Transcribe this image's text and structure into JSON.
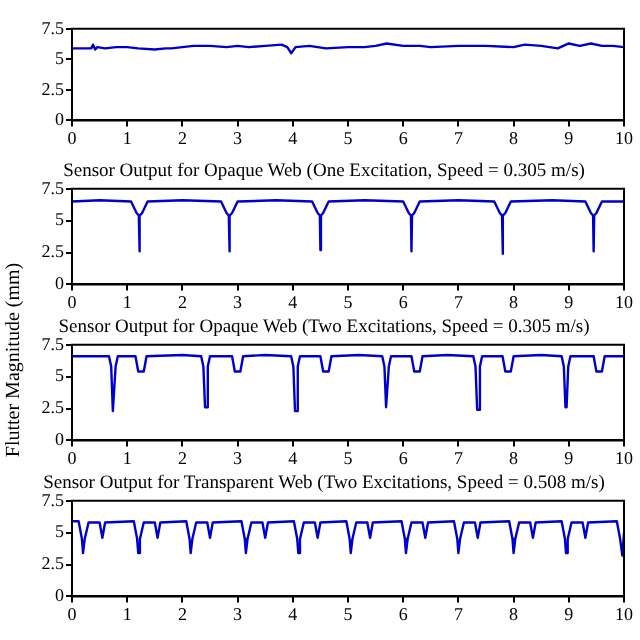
{
  "chart_data": [
    {
      "type": "line",
      "xlim": [
        0,
        10
      ],
      "xticks": [
        0,
        1,
        2,
        3,
        4,
        5,
        6,
        7,
        8,
        9,
        10
      ],
      "ylim": [
        0,
        7.5
      ],
      "yticks": [
        0,
        2.5,
        5,
        7.5
      ],
      "grid": false,
      "legend": false,
      "series": [
        {
          "color": "#0000cc",
          "x": [
            0,
            0.2,
            0.35,
            0.38,
            0.42,
            0.46,
            0.6,
            0.8,
            1,
            1.2,
            1.5,
            1.7,
            1.8,
            2,
            2.2,
            2.5,
            2.8,
            3,
            3.2,
            3.5,
            3.8,
            3.9,
            3.97,
            4.05,
            4.3,
            4.6,
            5,
            5.3,
            5.5,
            5.7,
            6,
            6.3,
            6.5,
            7,
            7.5,
            8,
            8.2,
            8.5,
            8.8,
            9,
            9.2,
            9.4,
            9.6,
            9.8,
            10
          ],
          "values": [
            5.9,
            5.9,
            5.9,
            6.2,
            5.8,
            6.0,
            5.9,
            6.0,
            6.0,
            5.9,
            5.8,
            5.9,
            5.9,
            6.0,
            6.1,
            6.1,
            6.0,
            6.1,
            6.0,
            6.1,
            6.2,
            6.0,
            5.5,
            6.0,
            6.1,
            5.9,
            6.0,
            6.0,
            6.1,
            6.3,
            6.1,
            6.1,
            6.0,
            6.1,
            6.1,
            6.0,
            6.2,
            6.1,
            5.9,
            6.3,
            6.1,
            6.3,
            6.1,
            6.1,
            6.0
          ]
        }
      ]
    },
    {
      "type": "line",
      "title": "Sensor Output for Opaque Web (One Excitation, Speed = 0.305 m/s)",
      "ylabel": "Flutter Magnitude (mm)",
      "xlim": [
        0,
        10
      ],
      "xticks": [
        0,
        1,
        2,
        3,
        4,
        5,
        6,
        7,
        8,
        9,
        10
      ],
      "ylim": [
        0,
        7.5
      ],
      "yticks": [
        0,
        2.5,
        5,
        7.5
      ],
      "grid": false,
      "legend": false,
      "series": [
        {
          "color": "#0000cc",
          "x": [
            0,
            0.5,
            1.07,
            1.17,
            1.21,
            1.22,
            1.23,
            1.27,
            1.37,
            2,
            2.7,
            2.8,
            2.84,
            2.85,
            2.86,
            2.9,
            3,
            3.7,
            4.35,
            4.45,
            4.49,
            4.5,
            4.51,
            4.55,
            4.65,
            5.3,
            6,
            6.1,
            6.14,
            6.15,
            6.16,
            6.2,
            6.3,
            7,
            7.65,
            7.75,
            7.79,
            7.8,
            7.81,
            7.85,
            7.95,
            8.7,
            9.3,
            9.4,
            9.44,
            9.45,
            9.46,
            9.5,
            9.6,
            10
          ],
          "values": [
            6.5,
            6.6,
            6.5,
            5.6,
            5.4,
            2.6,
            5.4,
            5.6,
            6.5,
            6.6,
            6.5,
            5.6,
            5.4,
            2.6,
            5.4,
            5.6,
            6.5,
            6.6,
            6.5,
            5.6,
            5.4,
            2.7,
            5.4,
            5.6,
            6.5,
            6.6,
            6.5,
            5.6,
            5.4,
            2.6,
            5.4,
            5.6,
            6.5,
            6.6,
            6.5,
            5.6,
            5.4,
            2.4,
            5.4,
            5.6,
            6.5,
            6.6,
            6.5,
            5.6,
            5.4,
            2.6,
            5.4,
            5.6,
            6.5,
            6.5
          ]
        }
      ]
    },
    {
      "type": "line",
      "title": "Sensor Output for Opaque Web (Two Excitations, Speed = 0.305 m/s)",
      "xlim": [
        0,
        10
      ],
      "xticks": [
        0,
        1,
        2,
        3,
        4,
        5,
        6,
        7,
        8,
        9,
        10
      ],
      "ylim": [
        0,
        7.5
      ],
      "yticks": [
        0,
        2.5,
        5,
        7.5
      ],
      "grid": false,
      "legend": false,
      "series": [
        {
          "color": "#0000cc",
          "x": [
            0,
            0.67,
            0.71,
            0.74,
            0.76,
            0.79,
            0.83,
            1.15,
            1.2,
            1.3,
            1.35,
            2,
            2.34,
            2.38,
            2.41,
            2.43,
            2.46,
            2.5,
            2.9,
            2.95,
            3.05,
            3.1,
            3.5,
            3.97,
            4.01,
            4.04,
            4.06,
            4.09,
            4.13,
            4.5,
            4.55,
            4.65,
            4.7,
            5.2,
            5.62,
            5.66,
            5.69,
            5.71,
            5.74,
            5.78,
            6.15,
            6.2,
            6.3,
            6.35,
            6.8,
            7.27,
            7.31,
            7.34,
            7.36,
            7.39,
            7.43,
            7.8,
            7.85,
            7.95,
            8,
            8.5,
            8.87,
            8.91,
            8.94,
            8.96,
            8.99,
            9.03,
            9.45,
            9.5,
            9.6,
            9.65,
            10
          ],
          "values": [
            6.6,
            6.6,
            5.8,
            2.3,
            2.3,
            5.8,
            6.6,
            6.6,
            5.4,
            5.4,
            6.6,
            6.7,
            6.6,
            5.8,
            2.6,
            2.6,
            5.8,
            6.6,
            6.6,
            5.4,
            5.4,
            6.6,
            6.7,
            6.6,
            5.8,
            2.3,
            2.3,
            5.8,
            6.6,
            6.6,
            5.4,
            5.4,
            6.6,
            6.7,
            6.6,
            5.8,
            2.6,
            2.6,
            5.8,
            6.6,
            6.6,
            5.4,
            5.4,
            6.6,
            6.7,
            6.6,
            5.8,
            2.4,
            2.4,
            5.8,
            6.6,
            6.6,
            5.4,
            5.4,
            6.6,
            6.7,
            6.6,
            5.8,
            2.6,
            2.6,
            5.8,
            6.6,
            6.6,
            5.4,
            5.4,
            6.6,
            6.6
          ]
        }
      ]
    },
    {
      "type": "line",
      "title": "Sensor Output for Transparent Web (Two Excitations, Speed = 0.508 m/s)",
      "xlim": [
        0,
        10
      ],
      "xticks": [
        0,
        1,
        2,
        3,
        4,
        5,
        6,
        7,
        8,
        9,
        10
      ],
      "ylim": [
        0,
        7.5
      ],
      "yticks": [
        0,
        2.5,
        5,
        7.5
      ],
      "grid": false,
      "legend": false,
      "series": [
        {
          "color": "#0000cc",
          "x": [
            0,
            0.12,
            0.18,
            0.2,
            0.23,
            0.3,
            0.5,
            0.55,
            0.6,
            1.12,
            1.18,
            1.2,
            1.23,
            1.3,
            1.5,
            1.55,
            1.6,
            2.07,
            2.13,
            2.15,
            2.18,
            2.25,
            2.45,
            2.5,
            2.55,
            3.07,
            3.13,
            3.15,
            3.18,
            3.25,
            3.45,
            3.5,
            3.55,
            4.02,
            4.08,
            4.1,
            4.13,
            4.2,
            4.4,
            4.45,
            4.5,
            4.97,
            5.03,
            5.05,
            5.08,
            5.15,
            5.35,
            5.4,
            5.45,
            5.97,
            6.03,
            6.05,
            6.08,
            6.15,
            6.35,
            6.4,
            6.45,
            6.92,
            6.98,
            7,
            7.03,
            7.1,
            7.3,
            7.35,
            7.4,
            7.92,
            7.98,
            8,
            8.03,
            8.1,
            8.3,
            8.35,
            8.4,
            8.87,
            8.93,
            8.95,
            8.98,
            9.05,
            9.25,
            9.3,
            9.35,
            9.87,
            9.93,
            9.97,
            10
          ],
          "values": [
            5.9,
            5.9,
            4.5,
            3.4,
            4.5,
            5.8,
            5.8,
            4.6,
            5.8,
            5.9,
            4.5,
            3.4,
            4.5,
            5.8,
            5.8,
            4.6,
            5.8,
            5.9,
            4.5,
            3.4,
            4.5,
            5.8,
            5.8,
            4.6,
            5.8,
            5.9,
            4.5,
            3.4,
            4.5,
            5.8,
            5.8,
            4.6,
            5.8,
            5.9,
            4.5,
            3.4,
            4.5,
            5.8,
            5.8,
            4.6,
            5.8,
            5.9,
            4.5,
            3.4,
            4.5,
            5.8,
            5.8,
            4.6,
            5.8,
            5.9,
            4.5,
            3.4,
            4.5,
            5.8,
            5.8,
            4.6,
            5.8,
            5.9,
            4.5,
            3.4,
            4.5,
            5.8,
            5.8,
            4.6,
            5.8,
            5.9,
            4.5,
            3.4,
            4.5,
            5.8,
            5.8,
            4.6,
            5.8,
            5.9,
            4.5,
            3.4,
            4.5,
            5.8,
            5.8,
            4.6,
            5.8,
            5.9,
            4.5,
            3.2,
            5.0
          ]
        }
      ]
    }
  ]
}
